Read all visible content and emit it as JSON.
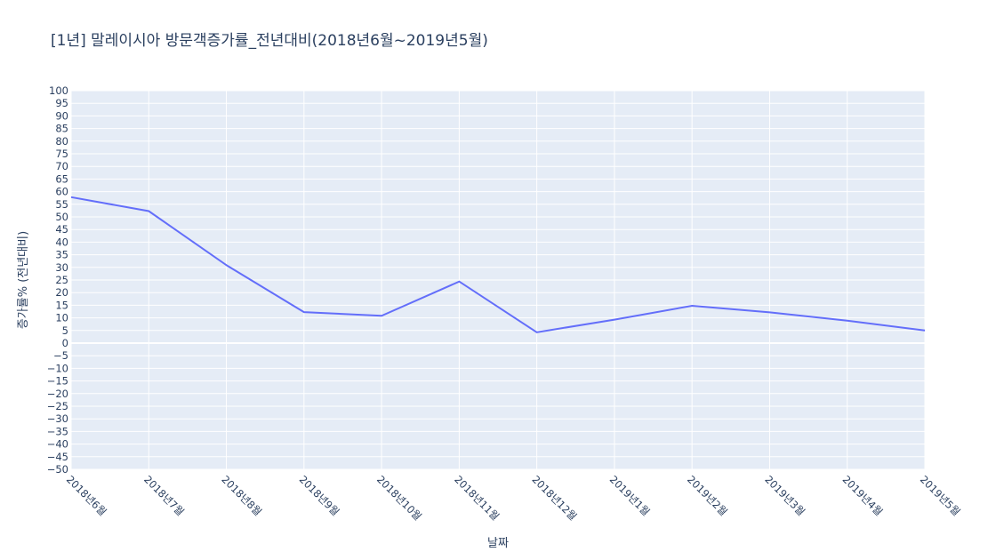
{
  "chart_data": {
    "type": "line",
    "title": "[1년] 말레이시아 방문객증가률_전년대비(2018년6월~2019년5월)",
    "xlabel": "날짜",
    "ylabel": "증가률% (전년대비)",
    "categories": [
      "2018년6월",
      "2018년7월",
      "2018년8월",
      "2018년9월",
      "2018년10월",
      "2018년11월",
      "2018년12월",
      "2019년1월",
      "2019년2월",
      "2019년3월",
      "2019년4월",
      "2019년5월"
    ],
    "series": [
      {
        "values": [
          57.8,
          52.3,
          30.9,
          12.3,
          10.8,
          24.4,
          4.3,
          9.3,
          14.8,
          12.2,
          8.9,
          5.0
        ]
      }
    ],
    "ylim": [
      -50,
      100
    ],
    "ytick_step": 5,
    "grid": true,
    "line_color": "#636efa",
    "plot_bg": "#e5ecf6",
    "grid_color": "#ffffff"
  }
}
